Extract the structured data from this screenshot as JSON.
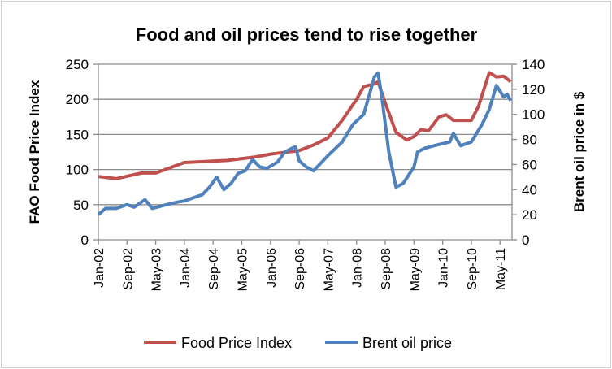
{
  "chart_data": {
    "type": "line",
    "title": "Food and oil prices tend to rise together",
    "xlabel": "",
    "ylabel": "FAO Food Price Index",
    "y2label": "Brent oil  price in $",
    "ylim": [
      0,
      250
    ],
    "y2lim": [
      0,
      140
    ],
    "yticks": [
      "0",
      "50",
      "100",
      "150",
      "200",
      "250"
    ],
    "y2ticks": [
      "0",
      "20",
      "40",
      "60",
      "80",
      "100",
      "120",
      "140"
    ],
    "x_unit": "months since Jan-02",
    "xticks": [
      "Jan-02",
      "Sep-02",
      "May-03",
      "Jan-04",
      "Sep-04",
      "May-05",
      "Jan-06",
      "Sep-06",
      "May-07",
      "Jan-08",
      "Sep-08",
      "May-09",
      "Jan-10",
      "Sep-10",
      "May-11"
    ],
    "grid": true,
    "legend": "bottom",
    "series": [
      {
        "name": "Food Price Index",
        "axis": "left",
        "color": "#c0504d",
        "x": [
          0,
          5,
          12,
          16,
          24,
          32,
          36,
          44,
          48,
          56,
          60,
          64,
          68,
          72,
          74,
          77,
          78,
          80,
          83,
          86,
          88,
          90,
          92,
          95,
          97,
          99,
          104,
          106,
          109,
          111,
          113,
          115
        ],
        "values": [
          90,
          87,
          95,
          95,
          110,
          112,
          113,
          118,
          122,
          127,
          135,
          145,
          170,
          200,
          218,
          222,
          225,
          195,
          153,
          142,
          147,
          157,
          155,
          175,
          178,
          170,
          170,
          190,
          238,
          232,
          233,
          225
        ]
      },
      {
        "name": "Brent oil price",
        "axis": "right",
        "color": "#4f81bd",
        "x": [
          0,
          2,
          5,
          8,
          10,
          13,
          15,
          19,
          22,
          24,
          27,
          29,
          31,
          33,
          35,
          37,
          39,
          41,
          43,
          45,
          47,
          50,
          52,
          54,
          55,
          56,
          58,
          60,
          64,
          68,
          71,
          74,
          77,
          78,
          79,
          81,
          83,
          85,
          88,
          89,
          91,
          95,
          98,
          99,
          101,
          104,
          107,
          109,
          111,
          113,
          114,
          115
        ],
        "values": [
          20,
          25,
          25,
          28,
          26,
          32,
          25,
          28,
          30,
          31,
          34,
          36,
          42,
          50,
          40,
          45,
          53,
          55,
          64,
          58,
          57,
          62,
          70,
          73,
          74,
          63,
          58,
          55,
          67,
          78,
          92,
          100,
          130,
          133,
          115,
          70,
          42,
          45,
          58,
          70,
          73,
          76,
          78,
          85,
          75,
          78,
          92,
          104,
          123,
          114,
          116,
          111
        ]
      }
    ]
  }
}
